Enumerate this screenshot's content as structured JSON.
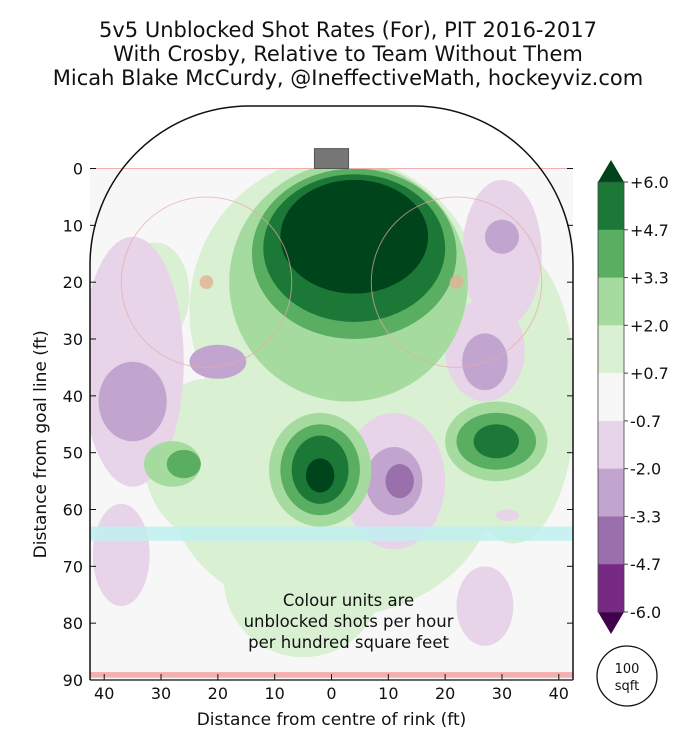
{
  "chart_data": {
    "type": "heatmap",
    "title": [
      "5v5 Unblocked Shot Rates (For), PIT 2016-2017",
      "With Crosby, Relative to Team Without Them",
      "Micah Blake McCurdy, @IneffectiveMath, hockeyviz.com"
    ],
    "xlabel": "Distance from centre of rink (ft)",
    "ylabel": "Distance from goal line (ft)",
    "xlim": [
      -42.5,
      42.5
    ],
    "ylim": [
      -11,
      90
    ],
    "x_ticks": [
      -40,
      -30,
      -20,
      -10,
      0,
      10,
      20,
      30,
      40
    ],
    "x_tick_labels": [
      "40",
      "30",
      "20",
      "10",
      "0",
      "10",
      "20",
      "30",
      "40"
    ],
    "y_ticks": [
      0,
      10,
      20,
      30,
      40,
      50,
      60,
      70,
      80,
      90
    ],
    "y_tick_labels": [
      "0",
      "10",
      "20",
      "30",
      "40",
      "50",
      "60",
      "70",
      "80",
      "90"
    ],
    "colorbar": {
      "ticks": [
        "+6.0",
        "+4.7",
        "+3.3",
        "+2.0",
        "+0.7",
        "-0.7",
        "-2.0",
        "-3.3",
        "-4.7",
        "-6.0"
      ],
      "colors": [
        "#00441b",
        "#1b7837",
        "#5aae61",
        "#a6dba0",
        "#d9f0d3",
        "#f7f7f7",
        "#e7d4e8",
        "#c2a5cf",
        "#9970ab",
        "#762a83",
        "#40004b"
      ]
    },
    "annotation": [
      "Colour units are",
      "unblocked shots per hour",
      "per hundred square feet"
    ],
    "scale_badge": [
      "100",
      "sqft"
    ],
    "regions": [
      {
        "level": 1,
        "cx": 1,
        "cy": 25,
        "rx": 26,
        "ry": 27
      },
      {
        "level": 1,
        "cx": 0,
        "cy": 55,
        "rx": 29,
        "ry": 24
      },
      {
        "level": 1,
        "cx": 32,
        "cy": 40,
        "rx": 11,
        "ry": 26
      },
      {
        "level": 1,
        "cx": -22,
        "cy": 51,
        "rx": 11,
        "ry": 14
      },
      {
        "level": 1,
        "cx": -5,
        "cy": 72,
        "rx": 14,
        "ry": 14
      },
      {
        "level": 1,
        "cx": -31,
        "cy": 22,
        "rx": 6,
        "ry": 9
      },
      {
        "level": -1,
        "cx": -35,
        "cy": 34,
        "rx": 9,
        "ry": 22
      },
      {
        "level": -1,
        "cx": 30,
        "cy": 15,
        "rx": 7,
        "ry": 13
      },
      {
        "level": -1,
        "cx": 27,
        "cy": 32,
        "rx": 7,
        "ry": 9
      },
      {
        "level": -1,
        "cx": 11,
        "cy": 55,
        "rx": 9,
        "ry": 12
      },
      {
        "level": -1,
        "cx": -37,
        "cy": 68,
        "rx": 5,
        "ry": 9
      },
      {
        "level": -1,
        "cx": 27,
        "cy": 77,
        "rx": 5,
        "ry": 7
      },
      {
        "level": -2,
        "cx": -35,
        "cy": 41,
        "rx": 6,
        "ry": 7
      },
      {
        "level": -2,
        "cx": -20,
        "cy": 34,
        "rx": 5,
        "ry": 3
      },
      {
        "level": -2,
        "cx": 27,
        "cy": 34,
        "rx": 4,
        "ry": 5
      },
      {
        "level": -2,
        "cx": 30,
        "cy": 12,
        "rx": 3,
        "ry": 3
      },
      {
        "level": -2,
        "cx": 11,
        "cy": 55,
        "rx": 5,
        "ry": 6
      },
      {
        "level": -3,
        "cx": 12,
        "cy": 55,
        "rx": 2.5,
        "ry": 3
      },
      {
        "level": -1,
        "cx": 31,
        "cy": 61,
        "rx": 2,
        "ry": 1
      },
      {
        "level": 2,
        "cx": 3,
        "cy": 20,
        "rx": 21,
        "ry": 21
      },
      {
        "level": 2,
        "cx": -28,
        "cy": 52,
        "rx": 5,
        "ry": 4
      },
      {
        "level": 2,
        "cx": -2,
        "cy": 53,
        "rx": 9,
        "ry": 10
      },
      {
        "level": 2,
        "cx": 29,
        "cy": 48,
        "rx": 9,
        "ry": 7
      },
      {
        "level": 2,
        "cx": -3,
        "cy": 33,
        "rx": 5,
        "ry": 6
      },
      {
        "level": 3,
        "cx": 4,
        "cy": 15,
        "rx": 18,
        "ry": 15
      },
      {
        "level": 3,
        "cx": -2,
        "cy": 53,
        "rx": 7,
        "ry": 8
      },
      {
        "level": 3,
        "cx": 29,
        "cy": 48,
        "rx": 7,
        "ry": 5
      },
      {
        "level": 3,
        "cx": -26,
        "cy": 52,
        "rx": 3,
        "ry": 2.5
      },
      {
        "level": 4,
        "cx": 4,
        "cy": 14,
        "rx": 16,
        "ry": 13
      },
      {
        "level": 4,
        "cx": -2,
        "cy": 53,
        "rx": 5,
        "ry": 6
      },
      {
        "level": 4,
        "cx": 29,
        "cy": 48,
        "rx": 4,
        "ry": 3
      },
      {
        "level": 5,
        "cx": 4,
        "cy": 12,
        "rx": 13,
        "ry": 10
      },
      {
        "level": 5,
        "cx": -2,
        "cy": 54,
        "rx": 2.5,
        "ry": 3
      }
    ]
  }
}
